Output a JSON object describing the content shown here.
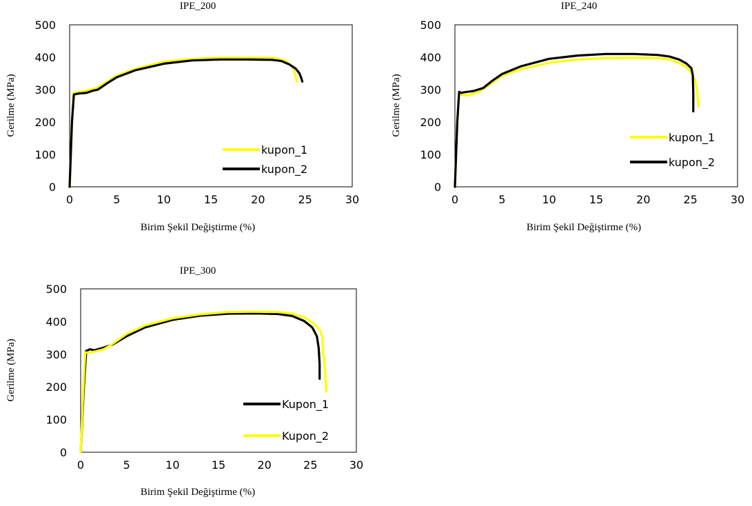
{
  "chart_data": [
    {
      "type": "line",
      "title": "IPE_200",
      "xlabel": "Birim Şekil Değiştirme (%)",
      "ylabel": "Gerilme (MPa)",
      "xlim": [
        0,
        30
      ],
      "ylim": [
        0,
        500
      ],
      "x_ticks": [
        "0",
        "5",
        "10",
        "15",
        "20",
        "25",
        "30"
      ],
      "y_ticks": [
        "0",
        "100",
        "200",
        "300",
        "400",
        "500"
      ],
      "grid": false,
      "legend_position": "bottom-right",
      "series": [
        {
          "name": "kupon_1",
          "color": "#FFFF00",
          "points": [
            [
              0,
              0
            ],
            [
              0.25,
              200
            ],
            [
              0.4,
              290
            ],
            [
              0.8,
              292
            ],
            [
              1.5,
              295
            ],
            [
              2.2,
              300
            ],
            [
              2.8,
              305
            ],
            [
              4,
              325
            ],
            [
              5,
              343
            ],
            [
              7,
              365
            ],
            [
              10,
              386
            ],
            [
              13,
              395
            ],
            [
              16,
              398
            ],
            [
              19,
              398
            ],
            [
              21,
              398
            ],
            [
              22,
              396
            ],
            [
              22.8,
              390
            ],
            [
              23.4,
              378
            ],
            [
              23.8,
              360
            ],
            [
              24,
              340
            ],
            [
              24.1,
              325
            ]
          ]
        },
        {
          "name": "kupon_2",
          "color": "#000000",
          "points": [
            [
              0,
              0
            ],
            [
              0.25,
              200
            ],
            [
              0.45,
              285
            ],
            [
              1,
              288
            ],
            [
              1.8,
              290
            ],
            [
              2.5,
              297
            ],
            [
              3,
              300
            ],
            [
              4,
              320
            ],
            [
              5,
              338
            ],
            [
              7,
              360
            ],
            [
              10,
              380
            ],
            [
              13,
              390
            ],
            [
              16,
              393
            ],
            [
              19,
              393
            ],
            [
              21.5,
              392
            ],
            [
              22.5,
              388
            ],
            [
              23.3,
              378
            ],
            [
              24,
              365
            ],
            [
              24.4,
              350
            ],
            [
              24.6,
              335
            ],
            [
              24.7,
              325
            ]
          ]
        }
      ]
    },
    {
      "type": "line",
      "title": "IPE_240",
      "xlabel": "Birim Şekil Değiştirme (%)",
      "ylabel": "Gerilme (MPa)",
      "xlim": [
        0,
        30
      ],
      "ylim": [
        0,
        500
      ],
      "x_ticks": [
        "0",
        "5",
        "10",
        "15",
        "20",
        "25",
        "30"
      ],
      "y_ticks": [
        "0",
        "100",
        "200",
        "300",
        "400",
        "500"
      ],
      "grid": false,
      "legend_position": "right",
      "series": [
        {
          "name": "kupon_1",
          "color": "#FFFF00",
          "points": [
            [
              0,
              0
            ],
            [
              0.25,
              200
            ],
            [
              0.45,
              285
            ],
            [
              1,
              283
            ],
            [
              1.5,
              283
            ],
            [
              2.5,
              293
            ],
            [
              3.5,
              312
            ],
            [
              5,
              343
            ],
            [
              7,
              363
            ],
            [
              10,
              383
            ],
            [
              13,
              393
            ],
            [
              16,
              397
            ],
            [
              19,
              398
            ],
            [
              21.5,
              397
            ],
            [
              22.8,
              393
            ],
            [
              23.8,
              382
            ],
            [
              24.6,
              368
            ],
            [
              25.1,
              352
            ],
            [
              25.5,
              328
            ],
            [
              25.7,
              300
            ],
            [
              25.8,
              255
            ],
            [
              25.8,
              248
            ]
          ]
        },
        {
          "name": "kupon_2",
          "color": "#000000",
          "points": [
            [
              0,
              0
            ],
            [
              0.25,
              200
            ],
            [
              0.45,
              293
            ],
            [
              0.7,
              290
            ],
            [
              1,
              292
            ],
            [
              2,
              296
            ],
            [
              3,
              305
            ],
            [
              4,
              328
            ],
            [
              5,
              348
            ],
            [
              7,
              372
            ],
            [
              10,
              395
            ],
            [
              13,
              405
            ],
            [
              16,
              410
            ],
            [
              19,
              410
            ],
            [
              21.5,
              407
            ],
            [
              22.8,
              402
            ],
            [
              23.8,
              393
            ],
            [
              24.6,
              380
            ],
            [
              25.1,
              366
            ],
            [
              25.25,
              345
            ],
            [
              25.3,
              290
            ],
            [
              25.3,
              233
            ]
          ]
        }
      ]
    },
    {
      "type": "line",
      "title": "IPE_300",
      "xlabel": "Birim Şekil Değiştirme (%)",
      "ylabel": "Gerilme (MPa)",
      "xlim": [
        0,
        30
      ],
      "ylim": [
        0,
        500
      ],
      "x_ticks": [
        "0",
        "5",
        "10",
        "15",
        "20",
        "25",
        "30"
      ],
      "y_ticks": [
        "0",
        "100",
        "200",
        "300",
        "400",
        "500"
      ],
      "grid": false,
      "legend_position": "right",
      "series": [
        {
          "name": "Kupon_1",
          "color": "#000000",
          "points": [
            [
              0,
              0
            ],
            [
              0.35,
              200
            ],
            [
              0.6,
              310
            ],
            [
              1,
              315
            ],
            [
              1.5,
              312
            ],
            [
              2.5,
              320
            ],
            [
              3.5,
              330
            ],
            [
              5,
              355
            ],
            [
              7,
              382
            ],
            [
              10,
              405
            ],
            [
              13,
              418
            ],
            [
              16,
              424
            ],
            [
              19,
              425
            ],
            [
              21.5,
              423
            ],
            [
              23,
              417
            ],
            [
              24.3,
              402
            ],
            [
              25.2,
              382
            ],
            [
              25.7,
              355
            ],
            [
              25.9,
              320
            ],
            [
              26,
              270
            ],
            [
              26,
              225
            ]
          ]
        },
        {
          "name": "Kupon_2",
          "color": "#FFFF00",
          "points": [
            [
              0,
              0
            ],
            [
              0.3,
              200
            ],
            [
              0.5,
              305
            ],
            [
              1,
              305
            ],
            [
              1.5,
              308
            ],
            [
              2.5,
              315
            ],
            [
              3.5,
              332
            ],
            [
              5,
              362
            ],
            [
              7,
              388
            ],
            [
              10,
              410
            ],
            [
              13,
              422
            ],
            [
              16,
              429
            ],
            [
              19,
              430
            ],
            [
              21.5,
              429
            ],
            [
              23,
              424
            ],
            [
              24.3,
              413
            ],
            [
              25.3,
              395
            ],
            [
              26,
              375
            ],
            [
              26.3,
              350
            ],
            [
              26.4,
              300
            ],
            [
              26.6,
              250
            ],
            [
              26.7,
              185
            ]
          ]
        }
      ]
    }
  ]
}
